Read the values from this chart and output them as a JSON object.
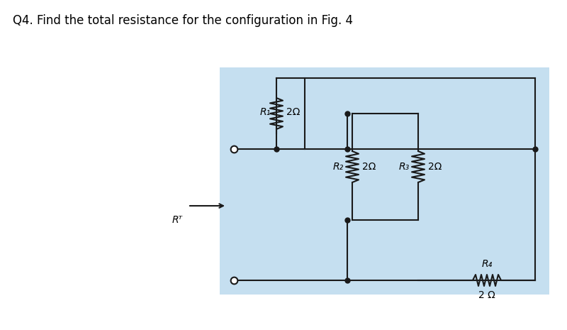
{
  "title": "Q4. Find the total resistance for the configuration in Fig. 4",
  "bg_color": "#ffffff",
  "circuit_bg": "#c5dff0",
  "wire_color": "#1a1a1a",
  "title_fontsize": 12,
  "label_fontsize": 9,
  "R1_label": "R₁",
  "R1_val": "2Ω",
  "R2_label": "R₂",
  "R2_val": "2Ω",
  "R3_label": "R₃",
  "R3_val": "2Ω",
  "R4_label": "R₄",
  "R4_val": "2 Ω",
  "RT_label": "Rᵀ"
}
